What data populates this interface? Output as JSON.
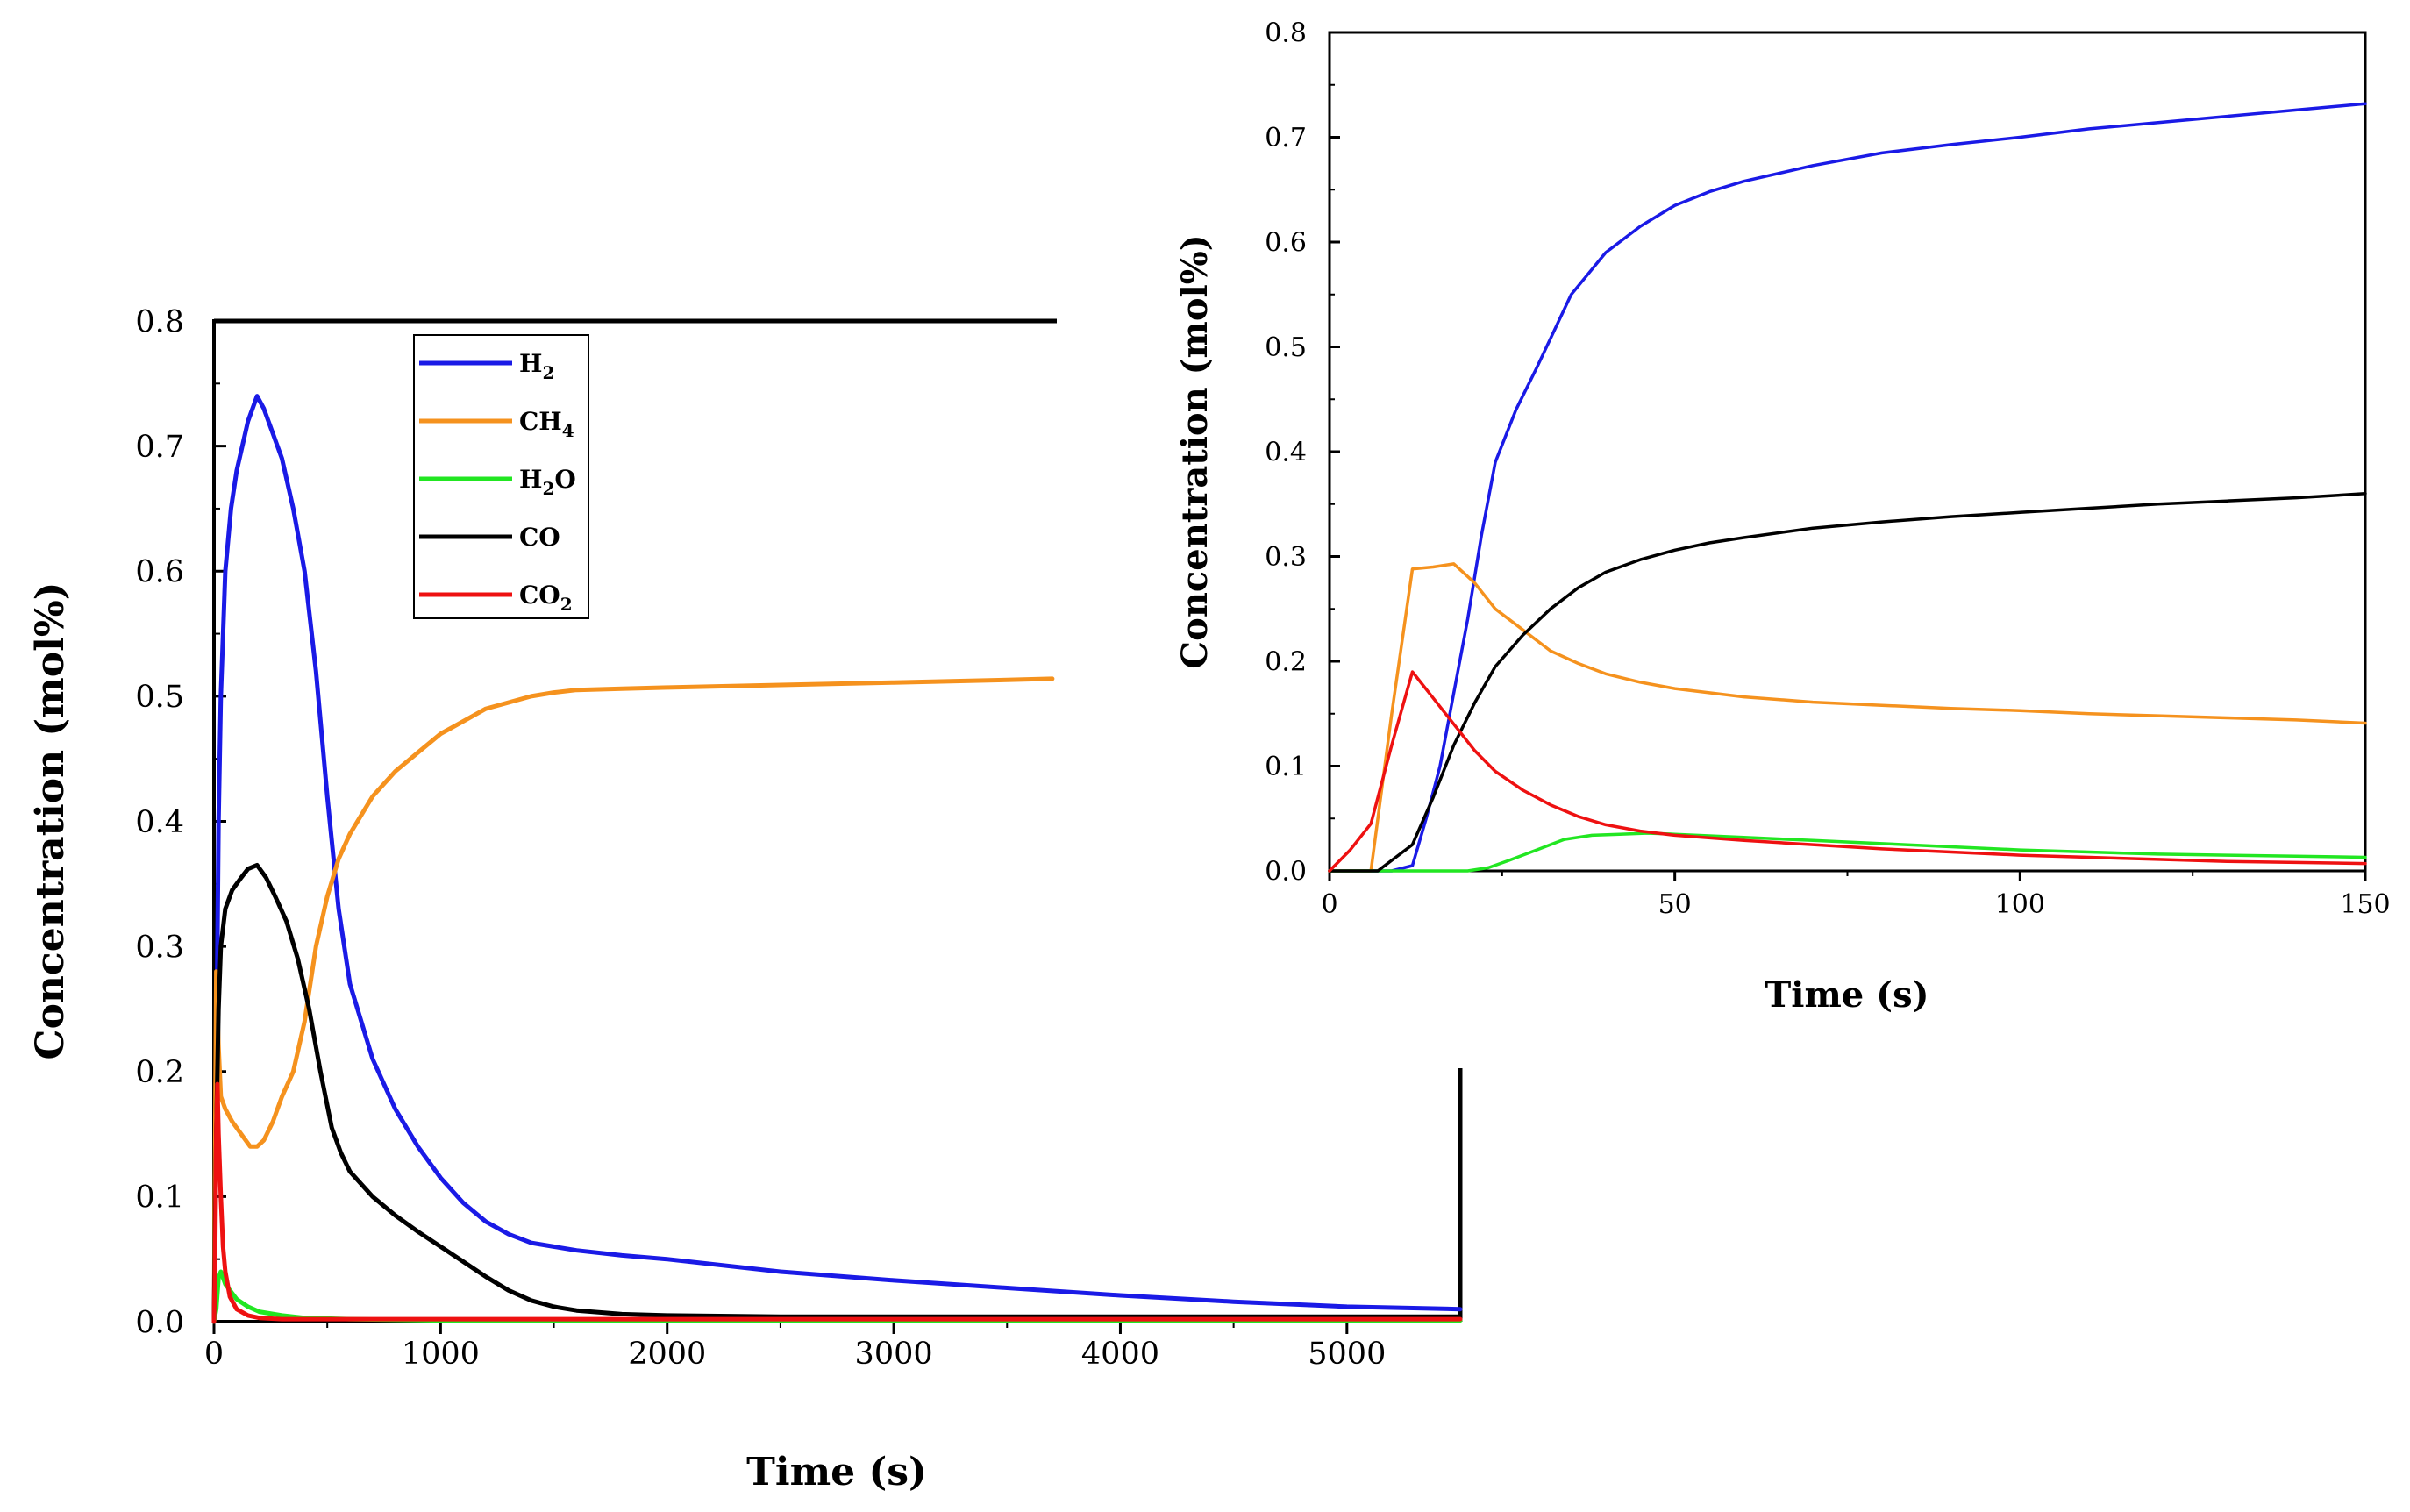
{
  "chart_data": [
    {
      "type": "line",
      "title": "",
      "xlabel": "Time (s)",
      "ylabel": "Concentration (mol%)",
      "xlim": [
        0,
        5500
      ],
      "ylim": [
        0,
        0.8
      ],
      "xticks": [
        0,
        1000,
        2000,
        3000,
        4000,
        5000
      ],
      "xtick_labels": [
        "0",
        "1000",
        "2000",
        "3000",
        "4000",
        "5000"
      ],
      "yticks": [
        0,
        0.1,
        0.2,
        0.3,
        0.4,
        0.5,
        0.6,
        0.7,
        0.8
      ],
      "ytick_labels": [
        "0.0",
        "0.1",
        "0.2",
        "0.3",
        "0.4",
        "0.5",
        "0.6",
        "0.7",
        "0.8"
      ],
      "legend_position": "top-left",
      "legend": [
        {
          "name": "H",
          "sub": "2",
          "tail": "",
          "color": "#1a1ae6"
        },
        {
          "name": "CH",
          "sub": "4",
          "tail": "",
          "color": "#f5921e"
        },
        {
          "name": "H",
          "sub": "2",
          "tail": "O",
          "color": "#22e622"
        },
        {
          "name": "CO",
          "sub": "",
          "tail": "",
          "color": "#000000"
        },
        {
          "name": "CO",
          "sub": "2",
          "tail": "",
          "color": "#ee1111"
        }
      ],
      "series": [
        {
          "name": "H2",
          "color": "#1a1ae6",
          "x": [
            0,
            10,
            20,
            30,
            50,
            75,
            100,
            150,
            190,
            220,
            260,
            300,
            350,
            400,
            450,
            500,
            550,
            600,
            700,
            800,
            900,
            1000,
            1100,
            1200,
            1300,
            1400,
            1500,
            1600,
            1800,
            2000,
            2500,
            3000,
            3500,
            4000,
            4500,
            5000,
            5500
          ],
          "y": [
            0,
            0.2,
            0.4,
            0.5,
            0.6,
            0.65,
            0.68,
            0.72,
            0.74,
            0.73,
            0.71,
            0.69,
            0.65,
            0.6,
            0.52,
            0.42,
            0.33,
            0.27,
            0.21,
            0.17,
            0.14,
            0.115,
            0.095,
            0.08,
            0.07,
            0.063,
            0.06,
            0.057,
            0.053,
            0.05,
            0.04,
            0.033,
            0.027,
            0.021,
            0.016,
            0.012,
            0.01
          ]
        },
        {
          "name": "CH4",
          "color": "#f5921e",
          "x": [
            0,
            10,
            20,
            30,
            50,
            80,
            120,
            160,
            190,
            220,
            260,
            300,
            350,
            400,
            450,
            500,
            550,
            600,
            700,
            800,
            900,
            1000,
            1100,
            1200,
            1300,
            1400,
            1500,
            1600,
            1800,
            2000,
            2500,
            3000,
            3500,
            3700
          ],
          "y": [
            0,
            0.28,
            0.22,
            0.18,
            0.17,
            0.16,
            0.15,
            0.14,
            0.14,
            0.145,
            0.16,
            0.18,
            0.2,
            0.24,
            0.3,
            0.34,
            0.37,
            0.39,
            0.42,
            0.44,
            0.455,
            0.47,
            0.48,
            0.49,
            0.495,
            0.5,
            0.503,
            0.505,
            0.506,
            0.507,
            0.509,
            0.511,
            0.513,
            0.514
          ]
        },
        {
          "name": "H2O",
          "color": "#22e622",
          "x": [
            0,
            10,
            20,
            30,
            50,
            100,
            150,
            200,
            300,
            400,
            600,
            1000,
            5500
          ],
          "y": [
            0,
            0.01,
            0.035,
            0.04,
            0.03,
            0.018,
            0.012,
            0.008,
            0.005,
            0.003,
            0.002,
            0.001,
            0.001
          ]
        },
        {
          "name": "CO",
          "color": "#000000",
          "x": [
            0,
            10,
            20,
            30,
            50,
            80,
            120,
            150,
            190,
            230,
            270,
            320,
            370,
            420,
            470,
            520,
            560,
            600,
            700,
            800,
            900,
            1000,
            1100,
            1200,
            1300,
            1400,
            1500,
            1600,
            1800,
            2000,
            2500,
            3000,
            4000,
            5500
          ],
          "y": [
            0,
            0.15,
            0.25,
            0.3,
            0.33,
            0.345,
            0.355,
            0.362,
            0.365,
            0.355,
            0.34,
            0.32,
            0.29,
            0.25,
            0.2,
            0.155,
            0.135,
            0.12,
            0.1,
            0.085,
            0.072,
            0.06,
            0.048,
            0.036,
            0.025,
            0.017,
            0.012,
            0.009,
            0.006,
            0.005,
            0.004,
            0.004,
            0.004,
            0.004
          ]
        },
        {
          "name": "CO2",
          "color": "#ee1111",
          "x": [
            0,
            5,
            10,
            15,
            20,
            30,
            40,
            50,
            70,
            100,
            150,
            200,
            300,
            5500
          ],
          "y": [
            0,
            0.05,
            0.15,
            0.19,
            0.15,
            0.1,
            0.06,
            0.04,
            0.02,
            0.01,
            0.005,
            0.003,
            0.002,
            0.002
          ]
        }
      ]
    },
    {
      "type": "line",
      "title": "",
      "xlabel": "Time (s)",
      "ylabel": "Concentration (mol%)",
      "xlim": [
        0,
        150
      ],
      "ylim": [
        0,
        0.8
      ],
      "xticks": [
        0,
        50,
        100,
        150
      ],
      "xtick_labels": [
        "0",
        "50",
        "100",
        "150"
      ],
      "yticks": [
        0,
        0.1,
        0.2,
        0.3,
        0.4,
        0.5,
        0.6,
        0.7,
        0.8
      ],
      "ytick_labels": [
        "0.0",
        "0.1",
        "0.2",
        "0.3",
        "0.4",
        "0.5",
        "0.6",
        "0.7",
        "0.8"
      ],
      "series": [
        {
          "name": "H2",
          "color": "#1a1ae6",
          "x": [
            0,
            6,
            9,
            12,
            14,
            16,
            18,
            20,
            22,
            24,
            27,
            30,
            35,
            40,
            45,
            50,
            55,
            60,
            70,
            80,
            90,
            100,
            110,
            120,
            130,
            140,
            150
          ],
          "y": [
            0,
            0,
            0,
            0.005,
            0.05,
            0.1,
            0.17,
            0.24,
            0.32,
            0.39,
            0.44,
            0.48,
            0.55,
            0.59,
            0.615,
            0.635,
            0.648,
            0.658,
            0.673,
            0.685,
            0.693,
            0.7,
            0.708,
            0.714,
            0.72,
            0.726,
            0.732
          ]
        },
        {
          "name": "CH4",
          "color": "#f5921e",
          "x": [
            0,
            6,
            9,
            12,
            15,
            18,
            21,
            24,
            28,
            32,
            36,
            40,
            45,
            50,
            55,
            60,
            70,
            80,
            90,
            100,
            110,
            120,
            130,
            140,
            150
          ],
          "y": [
            0,
            0,
            0.15,
            0.288,
            0.29,
            0.293,
            0.275,
            0.25,
            0.23,
            0.21,
            0.198,
            0.188,
            0.18,
            0.174,
            0.17,
            0.166,
            0.161,
            0.158,
            0.155,
            0.153,
            0.15,
            0.148,
            0.146,
            0.144,
            0.141
          ]
        },
        {
          "name": "H2O",
          "color": "#22e622",
          "x": [
            0,
            20,
            23,
            26,
            30,
            34,
            38,
            42,
            46,
            50,
            60,
            70,
            80,
            90,
            100,
            110,
            120,
            130,
            140,
            150
          ],
          "y": [
            0,
            0,
            0.003,
            0.01,
            0.02,
            0.03,
            0.034,
            0.035,
            0.036,
            0.035,
            0.032,
            0.029,
            0.026,
            0.023,
            0.02,
            0.018,
            0.016,
            0.015,
            0.014,
            0.013
          ]
        },
        {
          "name": "CO",
          "color": "#000000",
          "x": [
            0,
            7,
            9,
            12,
            15,
            18,
            21,
            24,
            28,
            32,
            36,
            40,
            45,
            50,
            55,
            60,
            70,
            80,
            90,
            100,
            110,
            120,
            130,
            140,
            150
          ],
          "y": [
            0,
            0,
            0.01,
            0.025,
            0.07,
            0.12,
            0.16,
            0.195,
            0.225,
            0.25,
            0.27,
            0.285,
            0.297,
            0.306,
            0.313,
            0.318,
            0.327,
            0.333,
            0.338,
            0.342,
            0.346,
            0.35,
            0.353,
            0.356,
            0.36
          ]
        },
        {
          "name": "CO2",
          "color": "#ee1111",
          "x": [
            0,
            3,
            6,
            9,
            12,
            15,
            18,
            21,
            24,
            28,
            32,
            36,
            40,
            45,
            50,
            60,
            70,
            80,
            90,
            100,
            110,
            120,
            130,
            140,
            150
          ],
          "y": [
            0,
            0.02,
            0.045,
            0.12,
            0.19,
            0.165,
            0.14,
            0.115,
            0.095,
            0.077,
            0.063,
            0.052,
            0.044,
            0.038,
            0.034,
            0.029,
            0.025,
            0.021,
            0.018,
            0.015,
            0.013,
            0.011,
            0.009,
            0.008,
            0.007
          ]
        }
      ]
    }
  ]
}
